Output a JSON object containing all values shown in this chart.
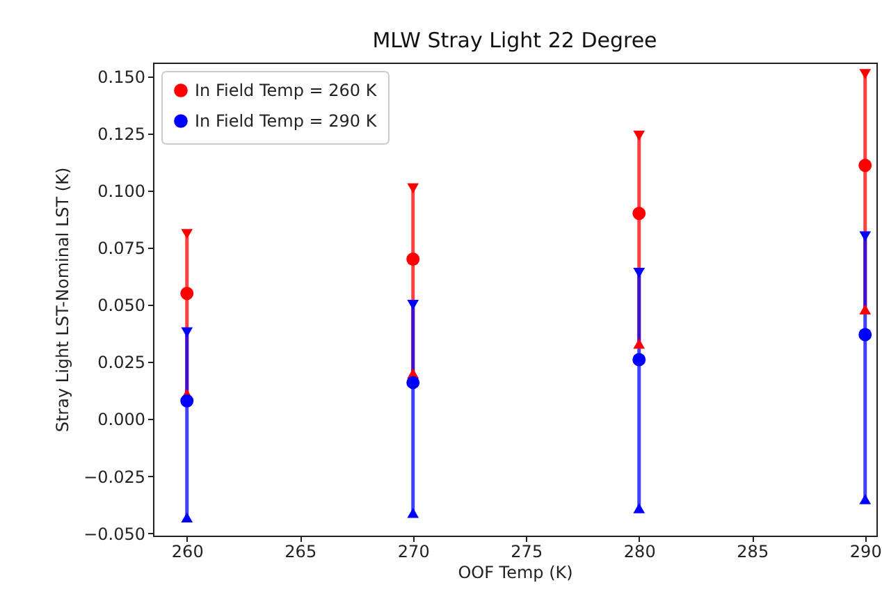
{
  "chart_data": {
    "type": "scatter",
    "title": "MLW Stray Light 22 Degree",
    "xlabel": "OOF Temp (K)",
    "ylabel": "Stray Light LST-Nominal LST (K)",
    "x": [
      260,
      270,
      280,
      290
    ],
    "series": [
      {
        "name": "In Field Temp = 260 K",
        "color": "#ff0000",
        "values": [
          0.055,
          0.07,
          0.09,
          0.111
        ],
        "errors": [
          [
            0.011,
            0.081
          ],
          [
            0.02,
            0.101
          ],
          [
            0.033,
            0.124
          ],
          [
            0.048,
            0.151
          ]
        ]
      },
      {
        "name": "In Field Temp = 290 K",
        "color": "#0000ff",
        "values": [
          0.008,
          0.016,
          0.026,
          0.037
        ],
        "errors": [
          [
            -0.043,
            0.038
          ],
          [
            -0.041,
            0.05
          ],
          [
            -0.039,
            0.064
          ],
          [
            -0.035,
            0.08
          ]
        ]
      }
    ],
    "xlim": [
      258.5,
      290.5
    ],
    "xticks": [
      260,
      265,
      270,
      275,
      280,
      285,
      290
    ],
    "ylim": [
      -0.051,
      0.156
    ],
    "yticks": [
      {
        "value": -0.05,
        "label": "−0.050"
      },
      {
        "value": -0.025,
        "label": "−0.025"
      },
      {
        "value": 0,
        "label": "0.000"
      },
      {
        "value": 0.025,
        "label": "0.025"
      },
      {
        "value": 0.05,
        "label": "0.050"
      },
      {
        "value": 0.075,
        "label": "0.075"
      },
      {
        "value": 0.1,
        "label": "0.100"
      },
      {
        "value": 0.125,
        "label": "0.125"
      },
      {
        "value": 0.15,
        "label": "0.150"
      }
    ],
    "legend": "top left",
    "marker": "circle",
    "grid": false
  }
}
